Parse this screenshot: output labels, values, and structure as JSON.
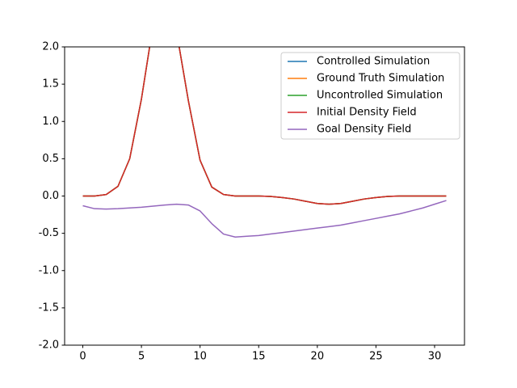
{
  "chart_data": {
    "type": "line",
    "x": [
      0,
      1,
      2,
      3,
      4,
      5,
      6,
      7,
      8,
      9,
      10,
      11,
      12,
      13,
      14,
      15,
      16,
      17,
      18,
      19,
      20,
      21,
      22,
      23,
      24,
      25,
      26,
      27,
      28,
      29,
      30,
      31
    ],
    "series": [
      {
        "name": "Controlled Simulation",
        "color": "#1f77b4",
        "values": [
          0,
          0,
          0.02,
          0.13,
          0.5,
          1.3,
          2.3,
          2.8,
          2.2,
          1.28,
          0.48,
          0.12,
          0.02,
          0,
          0,
          0,
          -0.005,
          -0.02,
          -0.04,
          -0.07,
          -0.1,
          -0.11,
          -0.1,
          -0.07,
          -0.04,
          -0.02,
          -0.005,
          0,
          0,
          0,
          0,
          0
        ]
      },
      {
        "name": "Ground Truth Simulation",
        "color": "#ff7f0e",
        "values": [
          0,
          0,
          0.02,
          0.13,
          0.5,
          1.3,
          2.3,
          2.8,
          2.2,
          1.28,
          0.48,
          0.12,
          0.02,
          0,
          0,
          0,
          -0.005,
          -0.02,
          -0.04,
          -0.07,
          -0.1,
          -0.11,
          -0.1,
          -0.07,
          -0.04,
          -0.02,
          -0.005,
          0,
          0,
          0,
          0,
          0
        ]
      },
      {
        "name": "Uncontrolled Simulation",
        "color": "#2ca02c",
        "values": [
          0,
          0,
          0.02,
          0.13,
          0.5,
          1.3,
          2.3,
          2.8,
          2.2,
          1.28,
          0.48,
          0.12,
          0.02,
          0,
          0,
          0,
          -0.005,
          -0.02,
          -0.04,
          -0.07,
          -0.1,
          -0.11,
          -0.1,
          -0.07,
          -0.04,
          -0.02,
          -0.005,
          0,
          0,
          0,
          0,
          0
        ]
      },
      {
        "name": "Initial Density Field",
        "color": "#d62728",
        "values": [
          0,
          0,
          0.02,
          0.13,
          0.5,
          1.3,
          2.3,
          2.8,
          2.2,
          1.28,
          0.48,
          0.12,
          0.02,
          0,
          0,
          0,
          -0.005,
          -0.02,
          -0.04,
          -0.07,
          -0.1,
          -0.11,
          -0.1,
          -0.07,
          -0.04,
          -0.02,
          -0.005,
          0,
          0,
          0,
          0,
          0
        ]
      },
      {
        "name": "Goal Density Field",
        "color": "#9467bd",
        "values": [
          -0.13,
          -0.17,
          -0.175,
          -0.17,
          -0.16,
          -0.15,
          -0.135,
          -0.12,
          -0.11,
          -0.12,
          -0.2,
          -0.37,
          -0.51,
          -0.55,
          -0.54,
          -0.53,
          -0.51,
          -0.49,
          -0.47,
          -0.45,
          -0.43,
          -0.41,
          -0.39,
          -0.36,
          -0.33,
          -0.3,
          -0.27,
          -0.24,
          -0.2,
          -0.16,
          -0.11,
          -0.06
        ]
      }
    ],
    "xlim": [
      -1.55,
      32.55
    ],
    "ylim": [
      -2,
      2
    ],
    "xticks": [
      0,
      5,
      10,
      15,
      20,
      25,
      30
    ],
    "yticks": [
      {
        "value": -2,
        "label": "-2.0"
      },
      {
        "value": -1.5,
        "label": "-1.5"
      },
      {
        "value": -1,
        "label": "-1.0"
      },
      {
        "value": -0.5,
        "label": "-0.5"
      },
      {
        "value": 0,
        "label": "0.0"
      },
      {
        "value": 0.5,
        "label": "0.5"
      },
      {
        "value": 1,
        "label": "1.0"
      },
      {
        "value": 1.5,
        "label": "1.5"
      },
      {
        "value": 2,
        "label": "2.0"
      }
    ],
    "legend": "upper right"
  }
}
